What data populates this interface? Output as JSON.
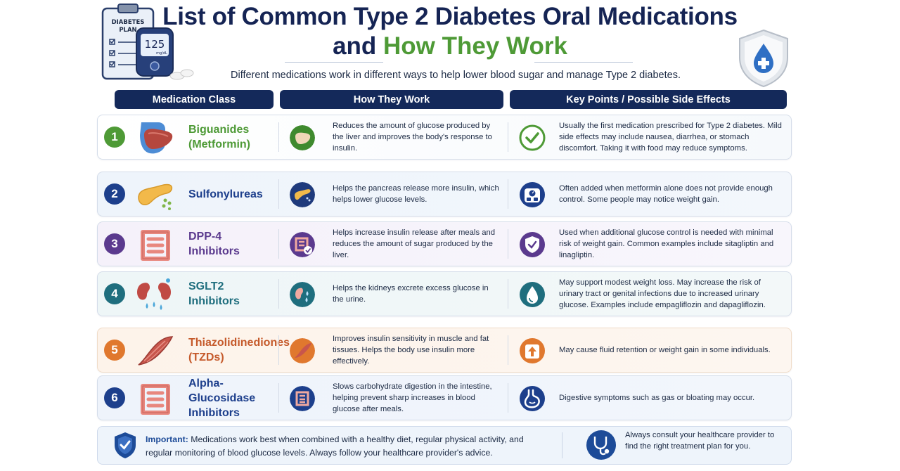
{
  "header": {
    "title_line1": "List of Common Type 2 Diabetes Oral Medications",
    "title_line2_prefix": "and ",
    "title_line2_accent": "How They Work",
    "subtitle": "Different medications work in different ways to help lower blood sugar and manage Type 2 diabetes.",
    "clipboard_text": "DIABETES PLAN",
    "meter_reading": "125",
    "meter_unit": "mg/dL"
  },
  "columns": {
    "class": "Medication Class",
    "how": "How They Work",
    "key": "Key Points / Possible Side Effects"
  },
  "rows": [
    {
      "number": "1",
      "name": "Biguanides\n(Metformin)",
      "how": "Reduces the amount of glucose produced by the liver and improves the body's response to insulin.",
      "key": "Usually the first medication prescribed for Type 2 diabetes. Mild side effects may include nausea, diarrhea, or stomach discomfort. Taking it with food may reduce symptoms.",
      "color": "#4e9a36",
      "organ_icon": "liver-icon",
      "key_icon": "checkmark-icon"
    },
    {
      "number": "2",
      "name": "Sulfonylureas",
      "how": "Helps the pancreas release more insulin, which helps lower glucose levels.",
      "key": "Often added when metformin alone does not provide enough control. Some people may notice weight gain.",
      "color": "#1d3f8c",
      "organ_icon": "pancreas-icon",
      "key_icon": "scale-icon"
    },
    {
      "number": "3",
      "name": "DPP-4\nInhibitors",
      "how": "Helps increase insulin release after meals and reduces the amount of sugar produced by the liver.",
      "key": "Used when additional glucose control is needed with minimal risk of weight gain. Common examples include sitagliptin and linagliptin.",
      "color": "#5b3a8e",
      "organ_icon": "intestine-icon",
      "key_icon": "shield-check-icon"
    },
    {
      "number": "4",
      "name": "SGLT2\nInhibitors",
      "how": "Helps the kidneys excrete excess glucose in the urine.",
      "key": "May support modest weight loss. May increase the risk of urinary tract or genital infections due to increased urinary glucose. Examples include empagliflozin and dapagliflozin.",
      "color": "#1f6e7e",
      "organ_icon": "kidneys-icon",
      "key_icon": "water-drop-icon"
    },
    {
      "number": "5",
      "name": "Thiazolidinediones\n(TZDs)",
      "how": "Improves insulin sensitivity in muscle and fat tissues. Helps the body use insulin more effectively.",
      "key": "May cause fluid retention or weight gain in some individuals.",
      "color": "#c55a2b",
      "organ_icon": "muscle-icon",
      "key_icon": "weight-up-icon"
    },
    {
      "number": "6",
      "name": "Alpha-Glucosidase\nInhibitors",
      "how": "Slows carbohydrate digestion in the intestine, helping prevent sharp increases in blood glucose after meals.",
      "key": "Digestive symptoms such as gas or bloating may occur.",
      "color": "#1d3f8c",
      "organ_icon": "intestine-icon",
      "key_icon": "stomach-icon"
    }
  ],
  "footer": {
    "important_label": "Important:",
    "important_text": " Medications work best when combined with a healthy diet, regular physical activity, and regular monitoring of blood glucose levels. Always follow your healthcare provider's advice.",
    "consult_text": "Always consult your healthcare provider to find the right treatment plan for you."
  }
}
